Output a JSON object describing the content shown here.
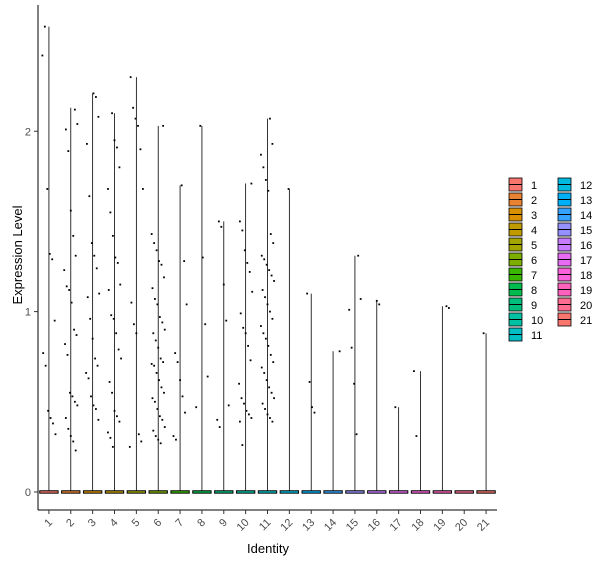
{
  "chart_data": {
    "type": "violin",
    "title": "",
    "xlabel": "Identity",
    "ylabel": "Expression Level",
    "ylim": [
      -0.1,
      2.7
    ],
    "yticks": [
      0,
      1,
      2
    ],
    "categories": [
      "1",
      "2",
      "3",
      "4",
      "5",
      "6",
      "7",
      "8",
      "9",
      "10",
      "11",
      "12",
      "13",
      "14",
      "15",
      "16",
      "17",
      "18",
      "19",
      "20",
      "21"
    ],
    "colors": [
      "#F8766D",
      "#EA8331",
      "#D89000",
      "#C09B00",
      "#A3A500",
      "#7CAE00",
      "#39B600",
      "#00BB4E",
      "#00BF7D",
      "#00C1A3",
      "#00BFC4",
      "#00BAE0",
      "#00B0F6",
      "#35A2FF",
      "#9590FF",
      "#C77CFF",
      "#E76BF3",
      "#FA62DB",
      "#FF62BC",
      "#FF6C91",
      "#F8766D"
    ],
    "max_values": [
      2.58,
      2.13,
      2.21,
      2.1,
      2.3,
      2.03,
      1.7,
      2.03,
      1.5,
      1.71,
      2.07,
      1.68,
      1.1,
      0.78,
      1.31,
      1.06,
      0.47,
      0.67,
      1.03,
      0.0,
      0.88
    ],
    "legend": {
      "position": "right",
      "entries": [
        "1",
        "2",
        "3",
        "4",
        "5",
        "6",
        "7",
        "8",
        "9",
        "10",
        "11",
        "12",
        "13",
        "14",
        "15",
        "16",
        "17",
        "18",
        "19",
        "20",
        "21"
      ]
    },
    "jitter_points": [
      [
        2.42,
        2.58,
        1.68,
        1.32,
        1.29,
        0.95,
        0.77,
        0.7,
        0.45,
        0.41,
        0.38,
        0.32
      ],
      [
        2.12,
        2.04,
        2.01,
        1.89,
        1.56,
        1.42,
        1.31,
        1.23,
        1.14,
        1.12,
        1.05,
        0.9,
        0.87,
        0.82,
        0.76,
        0.55,
        0.53,
        0.5,
        0.48,
        0.41,
        0.35,
        0.31,
        0.28,
        0.23
      ],
      [
        2.21,
        2.19,
        2.08,
        1.93,
        1.64,
        1.38,
        1.31,
        1.24,
        1.1,
        1.08,
        0.96,
        0.85,
        0.74,
        0.7,
        0.66,
        0.63,
        0.53,
        0.48,
        0.46,
        0.4
      ],
      [
        2.1,
        1.95,
        1.91,
        1.8,
        1.68,
        1.55,
        1.42,
        1.3,
        1.27,
        1.15,
        1.12,
        0.98,
        0.96,
        0.88,
        0.79,
        0.74,
        0.61,
        0.55,
        0.45,
        0.42,
        0.39,
        0.33,
        0.3,
        0.25
      ],
      [
        2.3,
        2.13,
        2.07,
        2.03,
        1.9,
        1.68,
        1.05,
        0.93,
        0.88,
        0.32,
        0.28,
        0.25
      ],
      [
        2.03,
        1.43,
        1.38,
        1.34,
        1.28,
        1.26,
        1.19,
        1.13,
        1.07,
        1.04,
        0.97,
        0.94,
        0.9,
        0.88,
        0.84,
        0.8,
        0.74,
        0.72,
        0.71,
        0.7,
        0.66,
        0.62,
        0.58,
        0.55,
        0.52,
        0.5,
        0.46,
        0.42,
        0.4,
        0.36,
        0.34,
        0.31,
        0.29,
        0.27
      ],
      [
        1.7,
        1.28,
        1.04,
        0.77,
        0.72,
        0.62,
        0.53,
        0.44,
        0.31,
        0.29
      ],
      [
        2.03,
        1.3,
        0.93,
        0.64,
        0.47
      ],
      [
        1.5,
        1.47,
        1.15,
        0.95,
        0.48,
        0.4,
        0.36
      ],
      [
        1.71,
        1.5,
        1.45,
        1.34,
        1.27,
        1.22,
        1.11,
        0.99,
        0.91,
        0.88,
        0.81,
        0.73,
        0.6,
        0.52,
        0.49,
        0.45,
        0.43,
        0.41,
        0.39,
        0.26
      ],
      [
        2.07,
        1.93,
        1.87,
        1.8,
        1.73,
        1.67,
        1.43,
        1.38,
        1.31,
        1.29,
        1.26,
        1.23,
        1.2,
        1.17,
        1.12,
        1.08,
        1.04,
        1.0,
        0.96,
        0.92,
        0.88,
        0.85,
        0.81,
        0.76,
        0.72,
        0.69,
        0.66,
        0.62,
        0.58,
        0.55,
        0.52,
        0.49,
        0.46,
        0.43,
        0.41,
        0.39
      ],
      [
        1.68
      ],
      [
        1.1,
        0.61,
        0.47,
        0.44
      ],
      [
        0.78
      ],
      [
        1.31,
        1.07,
        1.01,
        0.8,
        0.6,
        0.32
      ],
      [
        1.06,
        1.04
      ],
      [
        0.47
      ],
      [
        0.67,
        0.31
      ],
      [
        1.03,
        1.02
      ],
      [],
      [
        0.88
      ]
    ]
  }
}
